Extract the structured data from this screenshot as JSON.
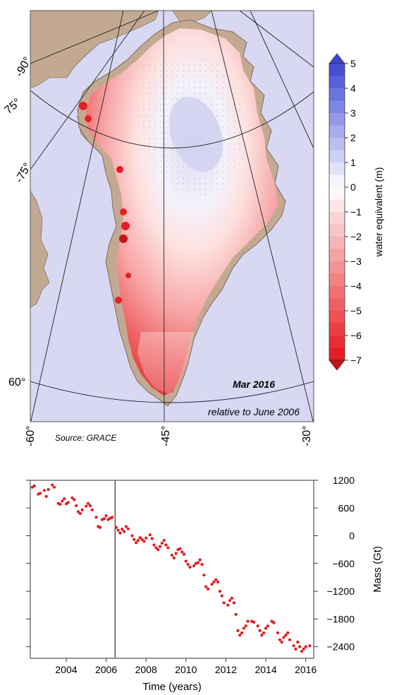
{
  "map": {
    "title": "Mar 2016",
    "subtitle": "relative to June 2006",
    "source": "Source: GRACE",
    "lon_labels": [
      "-60°",
      "-45°",
      "-30°"
    ],
    "lon_labels_left": [
      "-90°",
      "-75°"
    ],
    "lat_labels": [
      "75°",
      "60°"
    ],
    "colors": {
      "ocean": "#d8d8f3",
      "land": "#c3a992",
      "gain": "#3a46d4",
      "zero": "#ffffff",
      "loss": "#e8151b"
    },
    "colorbar": {
      "label": "water equivalent (m)",
      "ticks": [
        "5",
        "4",
        "3",
        "2",
        "1",
        "0",
        "−1",
        "−2",
        "−3",
        "−4",
        "−5",
        "−6",
        "−7"
      ],
      "range": [
        -7,
        5
      ]
    }
  },
  "chart_data": {
    "type": "scatter",
    "xlabel": "Time (years)",
    "ylabel": "Mass (Gt)",
    "xlim": [
      2002.2,
      2016.4
    ],
    "ylim": [
      -2650,
      1200
    ],
    "xticks": [
      "2004",
      "2006",
      "2008",
      "2010",
      "2012",
      "2014",
      "2016"
    ],
    "yticks": [
      "1200",
      "600",
      "0",
      "−600",
      "−1200",
      "−1800",
      "−2400"
    ],
    "reference_line_x": 2006.45,
    "series_color": "#e8151b",
    "points": [
      [
        2002.3,
        1050
      ],
      [
        2002.4,
        1080
      ],
      [
        2002.6,
        900
      ],
      [
        2002.7,
        920
      ],
      [
        2002.9,
        980
      ],
      [
        2003.0,
        850
      ],
      [
        2003.1,
        1000
      ],
      [
        2003.3,
        1100
      ],
      [
        2003.4,
        1050
      ],
      [
        2003.6,
        700
      ],
      [
        2003.7,
        680
      ],
      [
        2003.8,
        750
      ],
      [
        2003.9,
        800
      ],
      [
        2004.0,
        690
      ],
      [
        2004.1,
        720
      ],
      [
        2004.3,
        820
      ],
      [
        2004.4,
        780
      ],
      [
        2004.5,
        650
      ],
      [
        2004.6,
        520
      ],
      [
        2004.7,
        480
      ],
      [
        2004.8,
        560
      ],
      [
        2005.0,
        640
      ],
      [
        2005.1,
        700
      ],
      [
        2005.2,
        650
      ],
      [
        2005.3,
        560
      ],
      [
        2005.5,
        400
      ],
      [
        2005.6,
        200
      ],
      [
        2005.7,
        180
      ],
      [
        2005.8,
        350
      ],
      [
        2005.9,
        370
      ],
      [
        2006.0,
        430
      ],
      [
        2006.1,
        350
      ],
      [
        2006.2,
        380
      ],
      [
        2006.3,
        400
      ],
      [
        2006.5,
        180
      ],
      [
        2006.6,
        120
      ],
      [
        2006.7,
        60
      ],
      [
        2006.8,
        140
      ],
      [
        2006.9,
        90
      ],
      [
        2007.0,
        200
      ],
      [
        2007.1,
        150
      ],
      [
        2007.3,
        0
      ],
      [
        2007.4,
        -80
      ],
      [
        2007.5,
        -150
      ],
      [
        2007.6,
        -100
      ],
      [
        2007.7,
        -40
      ],
      [
        2007.8,
        -80
      ],
      [
        2007.9,
        -120
      ],
      [
        2008.0,
        -50
      ],
      [
        2008.2,
        20
      ],
      [
        2008.3,
        -60
      ],
      [
        2008.4,
        -200
      ],
      [
        2008.5,
        -260
      ],
      [
        2008.6,
        -300
      ],
      [
        2008.7,
        -230
      ],
      [
        2008.8,
        -160
      ],
      [
        2008.9,
        -100
      ],
      [
        2009.0,
        -200
      ],
      [
        2009.1,
        -260
      ],
      [
        2009.3,
        -420
      ],
      [
        2009.4,
        -480
      ],
      [
        2009.5,
        -380
      ],
      [
        2009.6,
        -300
      ],
      [
        2009.7,
        -280
      ],
      [
        2009.8,
        -350
      ],
      [
        2009.9,
        -400
      ],
      [
        2010.0,
        -550
      ],
      [
        2010.1,
        -620
      ],
      [
        2010.2,
        -680
      ],
      [
        2010.4,
        -650
      ],
      [
        2010.5,
        -600
      ],
      [
        2010.6,
        -580
      ],
      [
        2010.7,
        -520
      ],
      [
        2010.8,
        -620
      ],
      [
        2010.9,
        -850
      ],
      [
        2011.0,
        -1100
      ],
      [
        2011.1,
        -1150
      ],
      [
        2011.3,
        -1050
      ],
      [
        2011.4,
        -1000
      ],
      [
        2011.5,
        -950
      ],
      [
        2011.6,
        -1000
      ],
      [
        2011.7,
        -1200
      ],
      [
        2011.8,
        -1300
      ],
      [
        2011.9,
        -1450
      ],
      [
        2012.1,
        -1500
      ],
      [
        2012.2,
        -1400
      ],
      [
        2012.3,
        -1350
      ],
      [
        2012.4,
        -1450
      ],
      [
        2012.5,
        -1700
      ],
      [
        2012.6,
        -2050
      ],
      [
        2012.7,
        -2150
      ],
      [
        2012.8,
        -2100
      ],
      [
        2012.9,
        -2000
      ],
      [
        2013.0,
        -1950
      ],
      [
        2013.1,
        -1850
      ],
      [
        2013.3,
        -1850
      ],
      [
        2013.4,
        -1870
      ],
      [
        2013.6,
        -1950
      ],
      [
        2013.7,
        -2050
      ],
      [
        2013.8,
        -2150
      ],
      [
        2013.9,
        -2100
      ],
      [
        2014.0,
        -2000
      ],
      [
        2014.1,
        -1950
      ],
      [
        2014.3,
        -1850
      ],
      [
        2014.4,
        -1880
      ],
      [
        2014.6,
        -2100
      ],
      [
        2014.7,
        -2250
      ],
      [
        2014.8,
        -2300
      ],
      [
        2014.9,
        -2200
      ],
      [
        2015.0,
        -2150
      ],
      [
        2015.1,
        -2100
      ],
      [
        2015.2,
        -2250
      ],
      [
        2015.4,
        -2380
      ],
      [
        2015.5,
        -2450
      ],
      [
        2015.6,
        -2300
      ],
      [
        2015.7,
        -2400
      ],
      [
        2015.8,
        -2500
      ],
      [
        2015.9,
        -2450
      ],
      [
        2016.0,
        -2400
      ],
      [
        2016.2,
        -2380
      ]
    ]
  }
}
